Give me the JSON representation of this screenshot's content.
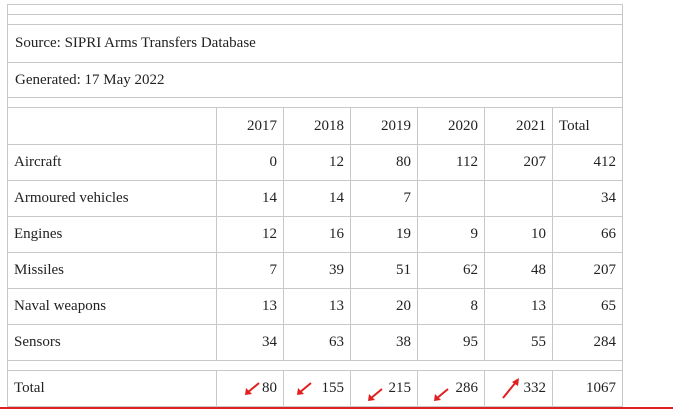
{
  "source": "Source: SIPRI Arms Transfers Database",
  "generated": "Generated: 17 May 2022",
  "header": [
    "",
    "2017",
    "2018",
    "2019",
    "2020",
    "2021",
    "Total"
  ],
  "rows": [
    {
      "label": "Aircraft",
      "values": [
        "0",
        "12",
        "80",
        "112",
        "207",
        "412"
      ]
    },
    {
      "label": "Armoured vehicles",
      "values": [
        "14",
        "14",
        "7",
        "",
        "",
        "34"
      ]
    },
    {
      "label": "Engines",
      "values": [
        "12",
        "16",
        "19",
        "9",
        "10",
        "66"
      ]
    },
    {
      "label": "Missiles",
      "values": [
        "7",
        "39",
        "51",
        "62",
        "48",
        "207"
      ]
    },
    {
      "label": "Naval weapons",
      "values": [
        "13",
        "13",
        "20",
        "8",
        "13",
        "65"
      ]
    },
    {
      "label": "Sensors",
      "values": [
        "34",
        "63",
        "38",
        "95",
        "55",
        "284"
      ]
    }
  ],
  "total": {
    "label": "Total",
    "values": [
      "80",
      "155",
      "215",
      "286",
      "332",
      "1067"
    ]
  },
  "colors": {
    "annotation": "#e02020",
    "border": "#c8c8c8"
  }
}
